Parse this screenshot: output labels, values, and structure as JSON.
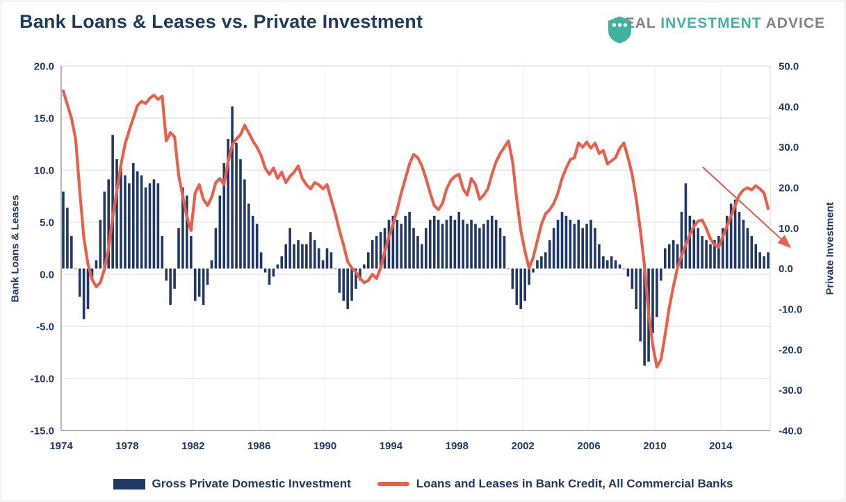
{
  "header": {
    "title": "Bank Loans & Leases vs. Private Investment",
    "brand": {
      "word1": "REAL",
      "word2": "INVESTMENT",
      "word3": "ADVICE"
    }
  },
  "colors": {
    "navy_text": "#1f3864",
    "bar_fill": "#203864",
    "line_red": "#e8604c",
    "brand_teal": "#3fb39e",
    "brand_gray": "#808285",
    "gridline": "#d9d9d9"
  },
  "legend": {
    "bars_label": "Gross Private Domestic Investment",
    "line_label": "Loans and Leases in Bank Credit, All Commercial Banks"
  },
  "chart_data": {
    "type": "bar",
    "subtype": "combo bar+line, quarterly YoY % change",
    "title": "Bank Loans & Leases vs. Private Investment",
    "x_start": 1974,
    "x_end": 2017,
    "x_unit": "quarterly",
    "grid": true,
    "legend_position": "bottom",
    "x_tick_labels": [
      "1974",
      "1978",
      "1982",
      "1986",
      "1990",
      "1994",
      "1998",
      "2002",
      "2006",
      "2010",
      "2014"
    ],
    "left_axis": {
      "label": "Bank Loans & Leases",
      "min": -15,
      "max": 20,
      "tick_labels": [
        "20.0",
        "15.0",
        "10.0",
        "5.0",
        "0.0",
        "-5.0",
        "-10.0",
        "-15.0"
      ]
    },
    "right_axis": {
      "label": "Private Investment",
      "min": -40,
      "max": 50,
      "tick_labels": [
        "50.0",
        "40.0",
        "30.0",
        "20.0",
        "10.0",
        "0.0",
        "-10.0",
        "-20.0",
        "-30.0",
        "-40.0"
      ]
    },
    "series": [
      {
        "name": "Gross Private Domestic Investment",
        "type": "bar",
        "axis": "right",
        "color": "#203864",
        "values": [
          19,
          15,
          8,
          0,
          -7,
          -12.5,
          -10,
          -3,
          2,
          12,
          19,
          22,
          33,
          27,
          25,
          23,
          21,
          26,
          24,
          23,
          20,
          21,
          22,
          21,
          8,
          -3,
          -9,
          -5,
          10,
          20,
          18,
          8,
          -8,
          -7,
          -9,
          -4,
          2,
          10,
          18,
          26,
          32,
          40,
          31,
          27,
          22,
          16,
          13,
          11,
          4,
          -1,
          -4,
          -2,
          1,
          3,
          6,
          10,
          6,
          7,
          6,
          6,
          9,
          7,
          5,
          2,
          5,
          4,
          0,
          -6,
          -8,
          -10,
          -8,
          -5,
          -3,
          1,
          4,
          7,
          8,
          9,
          10,
          12,
          13,
          12,
          11,
          13,
          14,
          10,
          8,
          6,
          10,
          12,
          13,
          12,
          11,
          12,
          13,
          12,
          14,
          12,
          11,
          12,
          11,
          10,
          11,
          12,
          13,
          12,
          10,
          8,
          0,
          -5,
          -9,
          -10,
          -8,
          -4,
          -1,
          2,
          3,
          4,
          7,
          10,
          12,
          14,
          13,
          12,
          11,
          12,
          10,
          11,
          12,
          10,
          6,
          3,
          2,
          3,
          2,
          1,
          0,
          -2,
          -5,
          -10,
          -18,
          -24,
          -23,
          -16,
          -12,
          -3,
          5,
          6,
          7,
          6,
          14,
          21,
          13,
          12,
          10,
          8,
          7,
          6,
          7,
          8,
          10,
          13,
          16,
          17,
          14,
          12,
          10,
          8,
          6,
          4,
          3,
          4
        ]
      },
      {
        "name": "Loans and Leases in Bank Credit, All Commercial Banks",
        "type": "line",
        "axis": "left",
        "color": "#e8604c",
        "values": [
          17.6,
          16.3,
          15.0,
          13.0,
          8.0,
          3.5,
          1.0,
          -0.5,
          -1.2,
          -0.8,
          0.5,
          2.5,
          5.5,
          8.0,
          10.5,
          12.5,
          13.8,
          15.0,
          16.2,
          16.6,
          16.4,
          16.9,
          17.2,
          16.8,
          17.1,
          12.8,
          13.6,
          13.2,
          9.5,
          7.5,
          5.5,
          4.2,
          7.8,
          8.6,
          7.2,
          6.6,
          7.4,
          8.8,
          9.2,
          8.6,
          10.8,
          12.4,
          13.0,
          13.4,
          14.3,
          13.6,
          12.8,
          12.2,
          11.4,
          10.2,
          9.6,
          10.2,
          9.2,
          9.8,
          8.8,
          9.4,
          9.8,
          10.4,
          9.2,
          8.6,
          8.2,
          8.8,
          8.6,
          8.2,
          8.6,
          7.2,
          5.8,
          4.2,
          2.8,
          1.2,
          0.6,
          0.2,
          -0.4,
          -0.8,
          -0.6,
          0.0,
          -0.4,
          0.6,
          2.2,
          3.6,
          4.8,
          6.2,
          7.8,
          9.2,
          10.6,
          11.5,
          11.2,
          10.4,
          9.2,
          7.8,
          6.6,
          6.2,
          6.8,
          8.2,
          9.0,
          9.4,
          9.6,
          8.2,
          7.6,
          9.2,
          8.6,
          7.2,
          7.6,
          8.2,
          9.6,
          10.8,
          11.6,
          12.2,
          12.8,
          10.8,
          7.2,
          4.2,
          2.2,
          0.6,
          1.6,
          3.2,
          4.8,
          5.8,
          6.2,
          6.8,
          7.8,
          9.2,
          10.2,
          11.0,
          11.2,
          12.6,
          12.2,
          12.7,
          12.1,
          12.6,
          11.6,
          11.9,
          10.6,
          10.9,
          11.2,
          12.1,
          12.6,
          11.2,
          9.6,
          7.2,
          4.2,
          0.8,
          -3.8,
          -6.8,
          -8.9,
          -8.2,
          -5.8,
          -3.2,
          -1.2,
          0.6,
          1.8,
          2.8,
          3.8,
          4.6,
          5.1,
          5.2,
          4.4,
          3.4,
          2.8,
          2.6,
          3.6,
          4.6,
          5.6,
          6.6,
          7.6,
          8.1,
          8.3,
          8.1,
          8.5,
          8.2,
          7.8,
          6.3
        ]
      }
    ],
    "annotation_arrow": {
      "from": {
        "year": 2012.9,
        "left_value": 10.3
      },
      "to": {
        "year": 2018.2,
        "left_value": 2.6
      },
      "color": "#e8604c"
    }
  }
}
